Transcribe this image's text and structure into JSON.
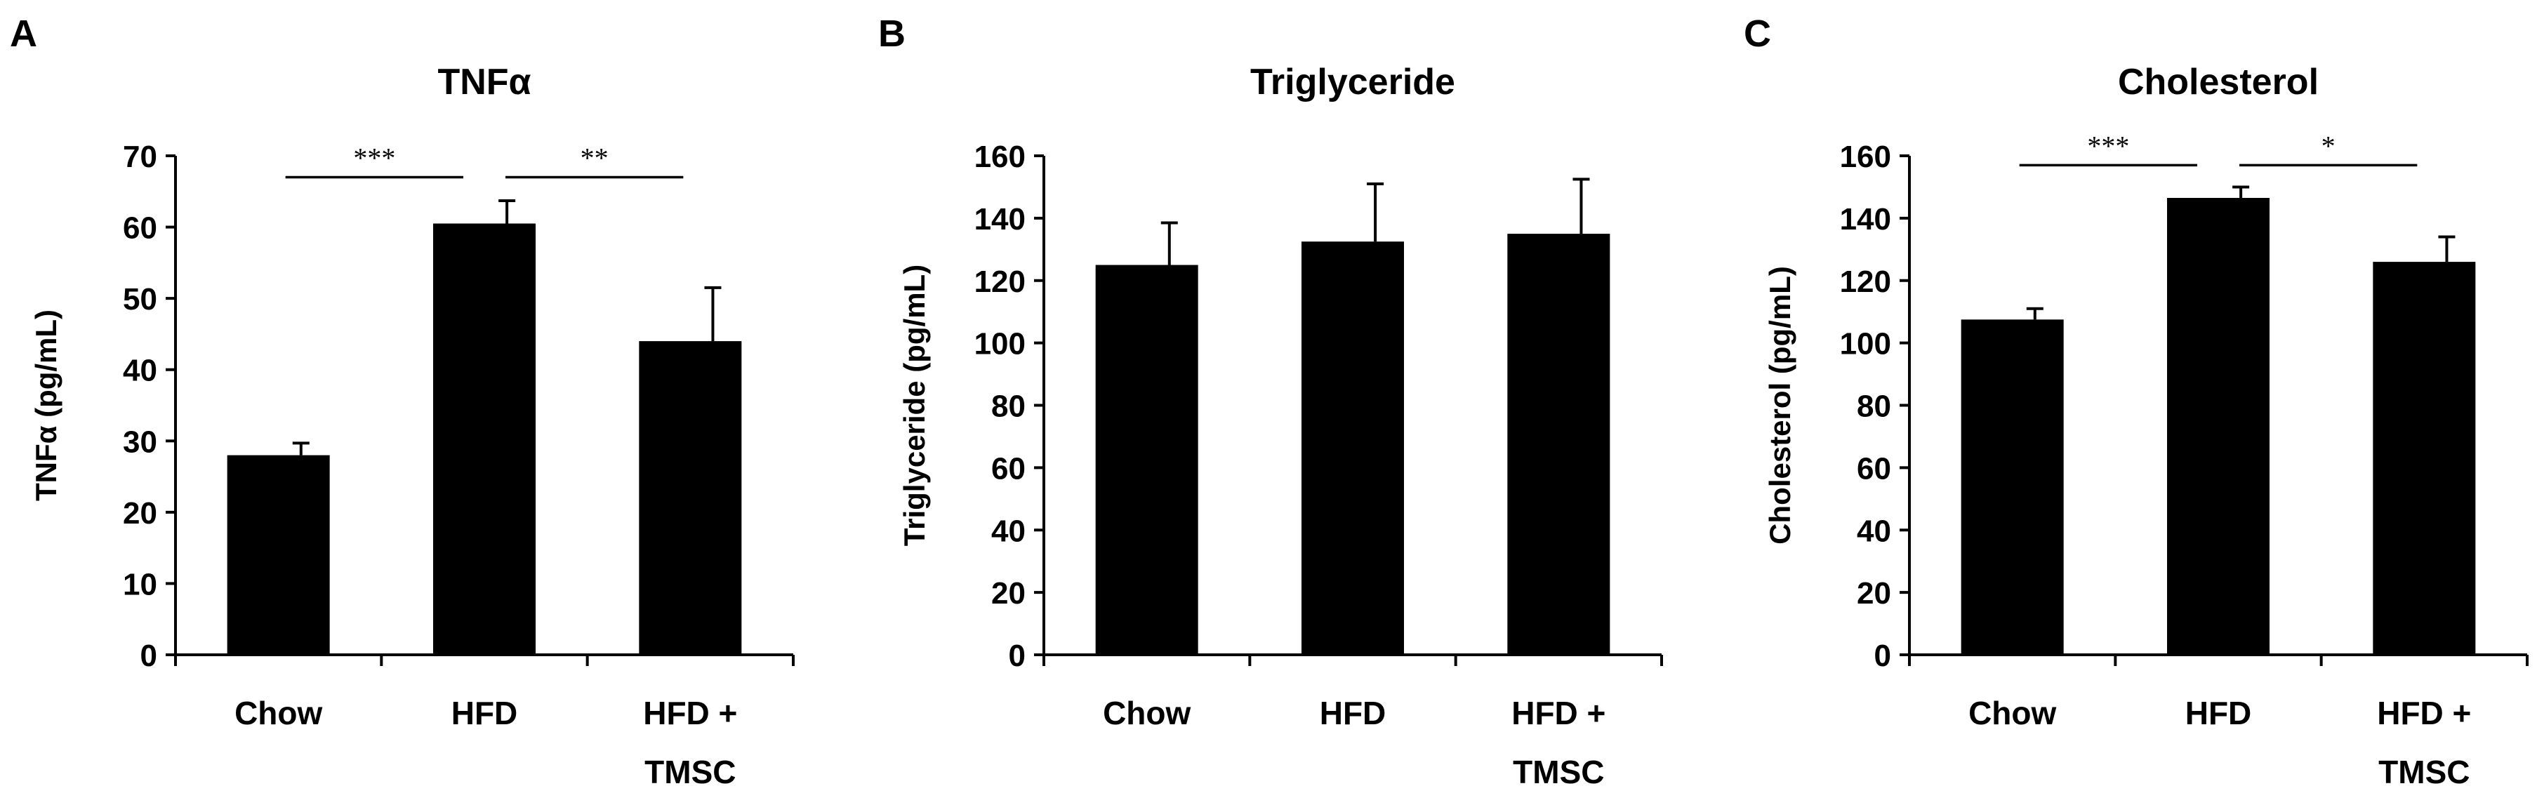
{
  "chart_data": [
    {
      "panel": "A",
      "type": "bar",
      "title": "TNFα",
      "ylabel": "TNFα (pg/mL)",
      "categories": [
        [
          "Chow"
        ],
        [
          "HFD"
        ],
        [
          "HFD +",
          "TMSC"
        ]
      ],
      "values": [
        28,
        60.5,
        44
      ],
      "errors": [
        1.7,
        3.2,
        7.5
      ],
      "ylim": [
        0,
        70
      ],
      "yticks": [
        0,
        10,
        20,
        30,
        40,
        50,
        60,
        70
      ],
      "bar_color": "#000000",
      "significance": [
        {
          "from": 0,
          "to": 1,
          "label": "***",
          "y": 67
        },
        {
          "from": 1,
          "to": 2,
          "label": "**",
          "y": 67
        }
      ]
    },
    {
      "panel": "B",
      "type": "bar",
      "title": "Triglyceride",
      "ylabel": "Triglyceride (pg/mL)",
      "categories": [
        [
          "Chow"
        ],
        [
          "HFD"
        ],
        [
          "HFD +",
          "TMSC"
        ]
      ],
      "values": [
        125,
        132.5,
        135
      ],
      "errors": [
        13.5,
        18.5,
        17.5
      ],
      "ylim": [
        0,
        160
      ],
      "yticks": [
        0,
        20,
        40,
        60,
        80,
        100,
        120,
        140,
        160
      ],
      "bar_color": "#000000",
      "significance": []
    },
    {
      "panel": "C",
      "type": "bar",
      "title": "Cholesterol",
      "ylabel": "Cholesterol (pg/mL)",
      "categories": [
        [
          "Chow"
        ],
        [
          "HFD"
        ],
        [
          "HFD +",
          "TMSC"
        ]
      ],
      "values": [
        107.5,
        146.5,
        126
      ],
      "errors": [
        3.5,
        3.5,
        8
      ],
      "ylim": [
        0,
        160
      ],
      "yticks": [
        0,
        20,
        40,
        60,
        80,
        100,
        120,
        140,
        160
      ],
      "bar_color": "#000000",
      "significance": [
        {
          "from": 0,
          "to": 1,
          "label": "***",
          "y": 157
        },
        {
          "from": 1,
          "to": 2,
          "label": "*",
          "y": 157
        }
      ]
    }
  ]
}
